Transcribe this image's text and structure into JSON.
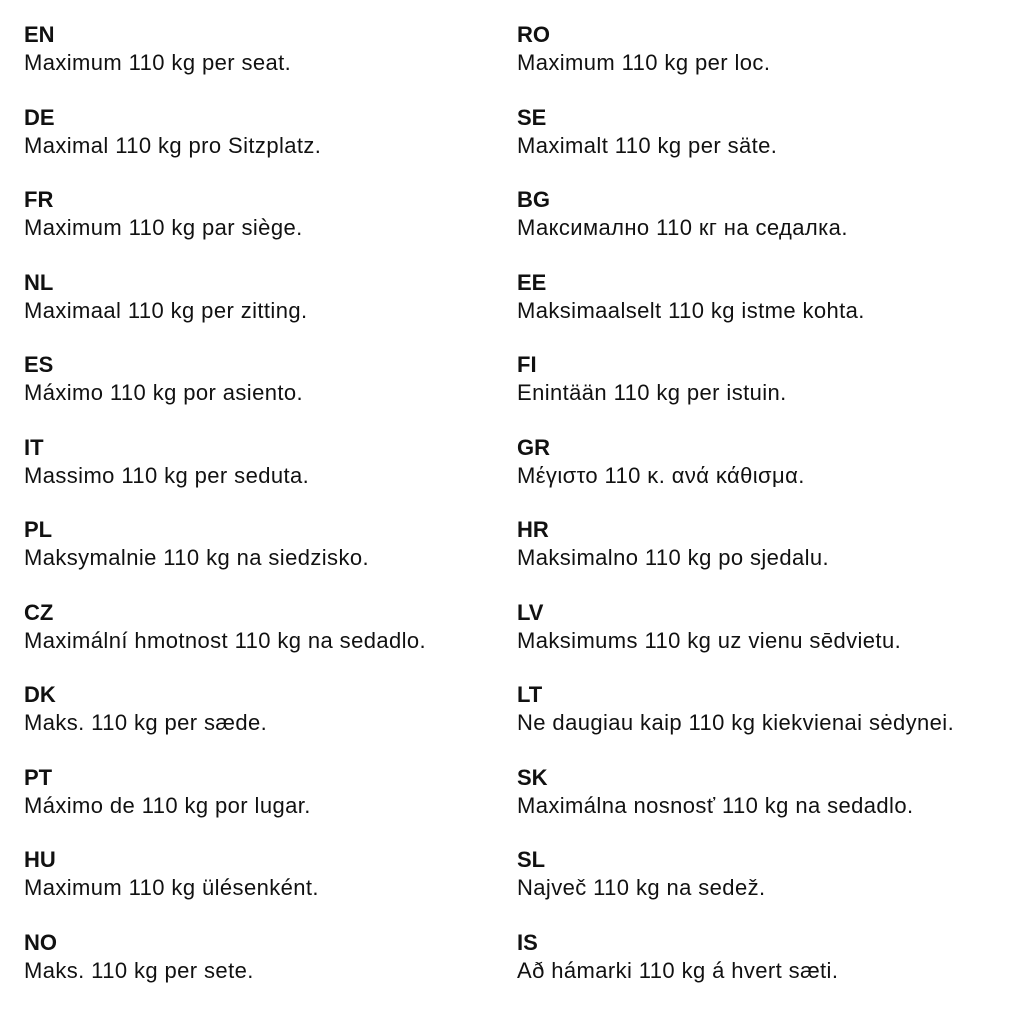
{
  "left": [
    {
      "code": "EN",
      "text": "Maximum 110 kg per seat."
    },
    {
      "code": "DE",
      "text": "Maximal 110 kg pro Sitzplatz."
    },
    {
      "code": "FR",
      "text": "Maximum 110 kg par siège."
    },
    {
      "code": "NL",
      "text": "Maximaal 110 kg per zitting."
    },
    {
      "code": "ES",
      "text": "Máximo 110 kg por asiento."
    },
    {
      "code": "IT",
      "text": "Massimo 110 kg per seduta."
    },
    {
      "code": "PL",
      "text": "Maksymalnie 110 kg na siedzisko."
    },
    {
      "code": "CZ",
      "text": "Maximální hmotnost 110 kg na sedadlo."
    },
    {
      "code": "DK",
      "text": "Maks. 110 kg per sæde."
    },
    {
      "code": "PT",
      "text": "Máximo de 110 kg por lugar."
    },
    {
      "code": "HU",
      "text": "Maximum 110 kg ülésenként."
    },
    {
      "code": "NO",
      "text": "Maks. 110 kg per sete."
    }
  ],
  "right": [
    {
      "code": "RO",
      "text": "Maximum 110 kg per loc."
    },
    {
      "code": "SE",
      "text": "Maximalt 110 kg per säte."
    },
    {
      "code": "BG",
      "text": "Максимално 110 кг на седалка."
    },
    {
      "code": "EE",
      "text": "Maksimaalselt 110 kg istme kohta."
    },
    {
      "code": "FI",
      "text": "Enintään 110 kg per istuin."
    },
    {
      "code": "GR",
      "text": "Μέγιστο 110 κ. ανά κάθισμα."
    },
    {
      "code": "HR",
      "text": "Maksimalno 110 kg po sjedalu."
    },
    {
      "code": "LV",
      "text": "Maksimums 110 kg uz vienu sēdvietu."
    },
    {
      "code": "LT",
      "text": "Ne daugiau kaip 110 kg kiekvienai sėdynei."
    },
    {
      "code": "SK",
      "text": "Maximálna nosnosť 110 kg na sedadlo."
    },
    {
      "code": "SL",
      "text": "Največ 110 kg na sedež."
    },
    {
      "code": "IS",
      "text": "Að hámarki 110 kg á hvert sæti."
    }
  ]
}
